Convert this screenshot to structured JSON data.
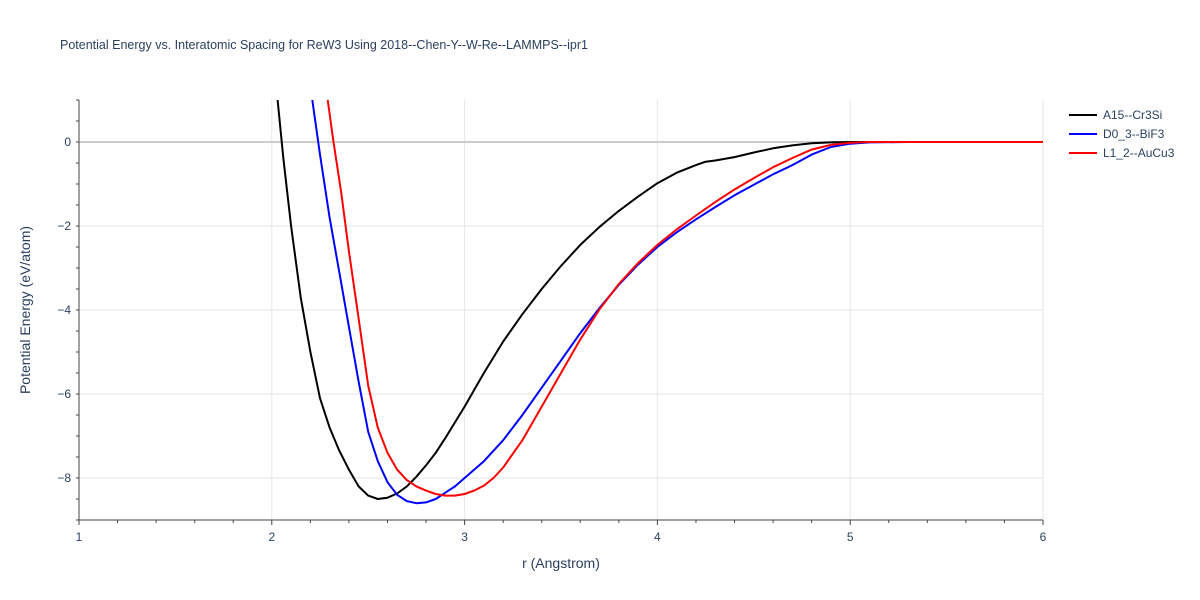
{
  "chart_data": {
    "type": "line",
    "title": "Potential Energy vs. Interatomic Spacing for ReW3 Using 2018--Chen-Y--W-Re--LAMMPS--ipr1",
    "xlabel": "r (Angstrom)",
    "ylabel": "Potential Energy (eV/atom)",
    "xlim": [
      1,
      6
    ],
    "ylim": [
      -9,
      1
    ],
    "xticks": [
      1,
      2,
      3,
      4,
      5,
      6
    ],
    "xtick_labels": [
      "1",
      "2",
      "3",
      "4",
      "5",
      "6"
    ],
    "yticks": [
      0,
      -2,
      -4,
      -6,
      -8
    ],
    "ytick_labels": [
      "0",
      "−2",
      "−4",
      "−6",
      "−8"
    ],
    "grid": true,
    "legend_position": "top-right",
    "series": [
      {
        "name": "A15--Cr3Si",
        "color": "#000000",
        "x": [
          2.03,
          2.06,
          2.1,
          2.15,
          2.2,
          2.25,
          2.3,
          2.35,
          2.4,
          2.45,
          2.5,
          2.55,
          2.6,
          2.65,
          2.7,
          2.75,
          2.8,
          2.85,
          2.9,
          3.0,
          3.1,
          3.2,
          3.3,
          3.4,
          3.5,
          3.6,
          3.7,
          3.8,
          3.9,
          4.0,
          4.1,
          4.2,
          4.25,
          4.3,
          4.4,
          4.5,
          4.6,
          4.7,
          4.8,
          4.9,
          5.0,
          5.1,
          5.3,
          5.5,
          6.0
        ],
        "y": [
          1.0,
          -0.4,
          -2.0,
          -3.7,
          -5.0,
          -6.1,
          -6.8,
          -7.35,
          -7.8,
          -8.2,
          -8.42,
          -8.5,
          -8.47,
          -8.37,
          -8.2,
          -7.97,
          -7.7,
          -7.4,
          -7.05,
          -6.3,
          -5.5,
          -4.75,
          -4.1,
          -3.5,
          -2.95,
          -2.45,
          -2.02,
          -1.64,
          -1.3,
          -0.98,
          -0.73,
          -0.55,
          -0.47,
          -0.44,
          -0.36,
          -0.25,
          -0.15,
          -0.08,
          -0.03,
          -0.01,
          0.0,
          0.0,
          0.0,
          0.0,
          0.0
        ]
      },
      {
        "name": "D0_3--BiF3",
        "color": "#0000ff",
        "x": [
          2.21,
          2.25,
          2.3,
          2.35,
          2.4,
          2.45,
          2.5,
          2.55,
          2.6,
          2.65,
          2.7,
          2.75,
          2.8,
          2.85,
          2.9,
          2.95,
          3.0,
          3.1,
          3.2,
          3.3,
          3.4,
          3.5,
          3.6,
          3.7,
          3.8,
          3.9,
          4.0,
          4.1,
          4.2,
          4.3,
          4.4,
          4.5,
          4.6,
          4.7,
          4.8,
          4.9,
          5.0,
          5.1,
          5.3,
          5.5,
          6.0
        ],
        "y": [
          1.0,
          -0.3,
          -1.8,
          -3.1,
          -4.4,
          -5.7,
          -6.9,
          -7.6,
          -8.1,
          -8.4,
          -8.55,
          -8.6,
          -8.58,
          -8.5,
          -8.35,
          -8.2,
          -8.0,
          -7.6,
          -7.1,
          -6.5,
          -5.85,
          -5.2,
          -4.55,
          -3.95,
          -3.4,
          -2.92,
          -2.5,
          -2.15,
          -1.84,
          -1.55,
          -1.27,
          -1.02,
          -0.77,
          -0.55,
          -0.3,
          -0.12,
          -0.04,
          -0.01,
          0.0,
          0.0,
          0.0
        ]
      },
      {
        "name": "L1_2--AuCu3",
        "color": "#ff0000",
        "x": [
          2.29,
          2.32,
          2.36,
          2.4,
          2.45,
          2.5,
          2.55,
          2.6,
          2.65,
          2.7,
          2.75,
          2.8,
          2.85,
          2.9,
          2.95,
          3.0,
          3.05,
          3.1,
          3.15,
          3.2,
          3.3,
          3.4,
          3.5,
          3.6,
          3.7,
          3.8,
          3.9,
          4.0,
          4.1,
          4.2,
          4.3,
          4.4,
          4.5,
          4.6,
          4.7,
          4.8,
          4.9,
          5.0,
          5.1,
          5.3,
          5.5,
          6.0
        ],
        "y": [
          1.0,
          0.0,
          -1.2,
          -2.6,
          -4.2,
          -5.8,
          -6.8,
          -7.4,
          -7.8,
          -8.05,
          -8.2,
          -8.3,
          -8.38,
          -8.42,
          -8.42,
          -8.38,
          -8.3,
          -8.18,
          -8.0,
          -7.75,
          -7.1,
          -6.3,
          -5.5,
          -4.7,
          -3.98,
          -3.38,
          -2.88,
          -2.45,
          -2.08,
          -1.75,
          -1.43,
          -1.13,
          -0.86,
          -0.6,
          -0.38,
          -0.18,
          -0.07,
          -0.02,
          0.0,
          0.0,
          0.0,
          0.0
        ]
      }
    ]
  }
}
